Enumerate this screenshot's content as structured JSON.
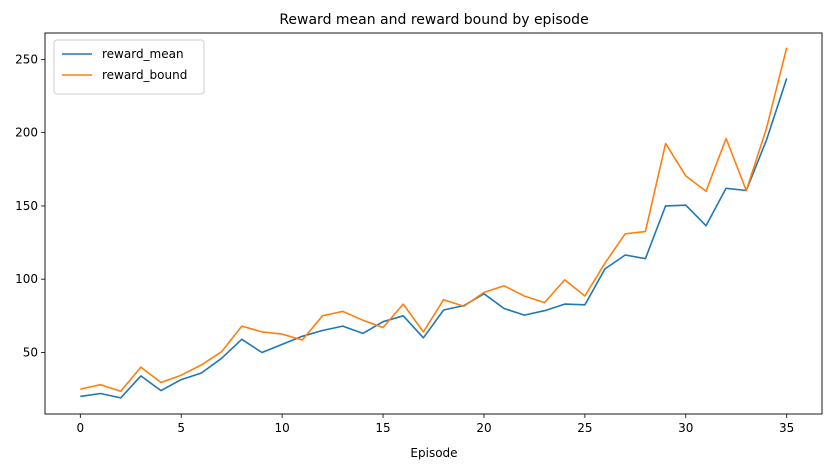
{
  "chart_data": {
    "type": "line",
    "title": "Reward mean and reward bound by episode",
    "xlabel": "Episode",
    "ylabel": "",
    "xlim": [
      -1.75,
      36.75
    ],
    "ylim": [
      8,
      268
    ],
    "x_ticks": [
      0,
      5,
      10,
      15,
      20,
      25,
      30,
      35
    ],
    "y_ticks": [
      50,
      100,
      150,
      200,
      250
    ],
    "grid": false,
    "legend_position": "top-left",
    "x": [
      0,
      1,
      2,
      3,
      4,
      5,
      6,
      7,
      8,
      9,
      10,
      11,
      12,
      13,
      14,
      15,
      16,
      17,
      18,
      19,
      20,
      21,
      22,
      23,
      24,
      25,
      26,
      27,
      28,
      29,
      30,
      31,
      32,
      33,
      34,
      35
    ],
    "series": [
      {
        "name": "reward_mean",
        "color": "#1f77b4",
        "values": [
          20,
          22,
          19,
          34,
          24,
          31.5,
          36,
          46,
          59,
          50,
          55.5,
          61,
          65,
          68,
          63,
          71,
          75,
          60,
          79,
          82,
          90,
          80,
          75.5,
          78.5,
          83,
          82.5,
          107,
          116.5,
          114,
          150,
          150.5,
          136.5,
          162,
          160.5,
          195,
          237
        ]
      },
      {
        "name": "reward_bound",
        "color": "#ff7f0e",
        "values": [
          25,
          28,
          23.5,
          40,
          29.5,
          34.5,
          41.5,
          50.5,
          68,
          64,
          62.5,
          58.5,
          75,
          78,
          72,
          67,
          83,
          64,
          86,
          81.5,
          91,
          95.5,
          88.5,
          84,
          99.5,
          88.5,
          111,
          131,
          132.5,
          192.5,
          170.5,
          160,
          196,
          160.5,
          203,
          258
        ]
      }
    ]
  }
}
